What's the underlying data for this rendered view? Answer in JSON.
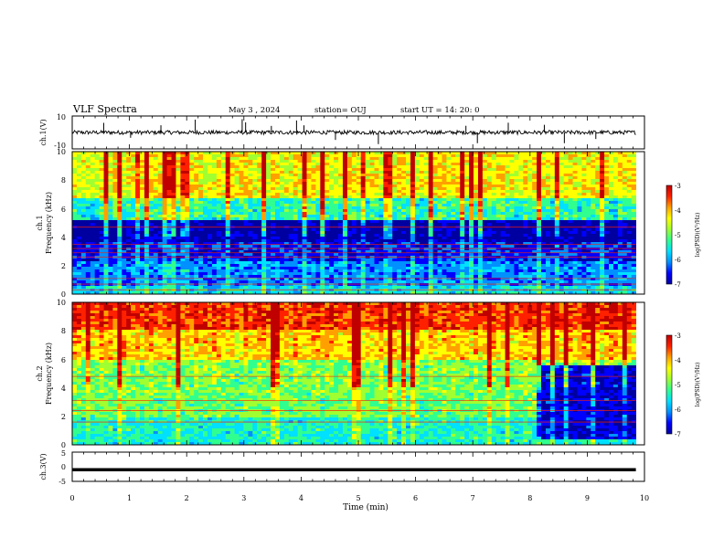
{
  "header": {
    "title": "VLF Spectra",
    "date": "May 3 , 2024",
    "station": "station= OUJ",
    "start": "start UT = 14: 20: 0"
  },
  "colors": {
    "colormap": [
      "#0000a0",
      "#0000ff",
      "#0090ff",
      "#00e0ff",
      "#30ff90",
      "#a0ff30",
      "#ffff00",
      "#ffa000",
      "#ff2000",
      "#c00000"
    ],
    "trace": "#000000"
  },
  "chart_data": [
    {
      "type": "line",
      "panel": "ch1-waveform",
      "ylabel": "ch.1(V)",
      "ylim": [
        -10,
        10
      ],
      "y_ticks": [
        "10",
        "-10"
      ],
      "baseline": 0,
      "noise_amplitude": 1.2,
      "spikes_min": [
        0.55,
        1.02,
        1.55,
        2.15,
        2.97,
        3.03,
        3.48,
        3.92,
        4.05,
        4.6,
        5.35,
        6.88,
        7.08,
        7.62,
        8.25,
        8.6,
        9.15
      ],
      "xlim": [
        0,
        10
      ]
    },
    {
      "type": "heatmap",
      "panel": "ch1-spectrogram",
      "ylabel": "ch.1 Frequency (kHz)",
      "ylim": [
        0,
        10
      ],
      "y_ticks": [
        "0",
        "2",
        "4",
        "6",
        "8",
        "10"
      ],
      "xlim": [
        0,
        10
      ],
      "colorbar": {
        "label": "log(PSD)(V²/Hz)",
        "ticks": [
          "-3",
          "-4",
          "-5",
          "-6",
          "-7"
        ],
        "range": [
          -7,
          -3
        ]
      },
      "band_levels_by_freq_khz": [
        {
          "f": [
            0,
            0.6
          ],
          "level": -5.6
        },
        {
          "f": [
            0.6,
            2.3
          ],
          "level": -6.0
        },
        {
          "f": [
            2.3,
            3.6
          ],
          "level": -6.4
        },
        {
          "f": [
            3.6,
            5.2
          ],
          "level": -6.8
        },
        {
          "f": [
            5.2,
            6.8
          ],
          "level": -5.3
        },
        {
          "f": [
            6.8,
            10
          ],
          "level": -4.4
        }
      ],
      "lines_khz": [
        0.3,
        0.7,
        1.1,
        2.6,
        2.9,
        3.2,
        3.5,
        4.7
      ]
    },
    {
      "type": "heatmap",
      "panel": "ch2-spectrogram",
      "ylabel": "ch.2 Frequency (kHz)",
      "ylim": [
        0,
        10
      ],
      "y_ticks": [
        "0",
        "2",
        "4",
        "6",
        "8",
        "10"
      ],
      "xlim": [
        0,
        10
      ],
      "colorbar": {
        "label": "log(PSD)(V²/Hz)",
        "ticks": [
          "-3",
          "-4",
          "-5",
          "-6",
          "-7"
        ],
        "range": [
          -7,
          -3
        ]
      },
      "band_levels_by_freq_khz": [
        {
          "f": [
            0,
            2.0
          ],
          "level": -5.4
        },
        {
          "f": [
            2.0,
            3.6
          ],
          "level": -5.0
        },
        {
          "f": [
            3.6,
            6.0
          ],
          "level": -4.9
        },
        {
          "f": [
            6.0,
            8.0
          ],
          "level": -4.2
        },
        {
          "f": [
            8.0,
            10
          ],
          "level": -3.6
        }
      ],
      "quiet_segment": {
        "t_min": [
          8.15,
          9.85
        ],
        "f_khz": [
          0.4,
          5.6
        ],
        "level": -6.6
      },
      "lines_khz": [
        1.6,
        2.4,
        3.1,
        4.8
      ]
    },
    {
      "type": "line",
      "panel": "ch3-waveform",
      "ylabel": "ch.3(V)",
      "ylim": [
        -5,
        5
      ],
      "y_ticks": [
        "5",
        "0",
        "-5"
      ],
      "baseline": -1.0,
      "xlim": [
        0,
        10
      ]
    }
  ],
  "x_axis": {
    "xlabel": "Time (min)",
    "ticks": [
      "0",
      "1",
      "2",
      "3",
      "4",
      "5",
      "6",
      "7",
      "8",
      "9",
      "10"
    ],
    "data_end_min": 9.85
  }
}
